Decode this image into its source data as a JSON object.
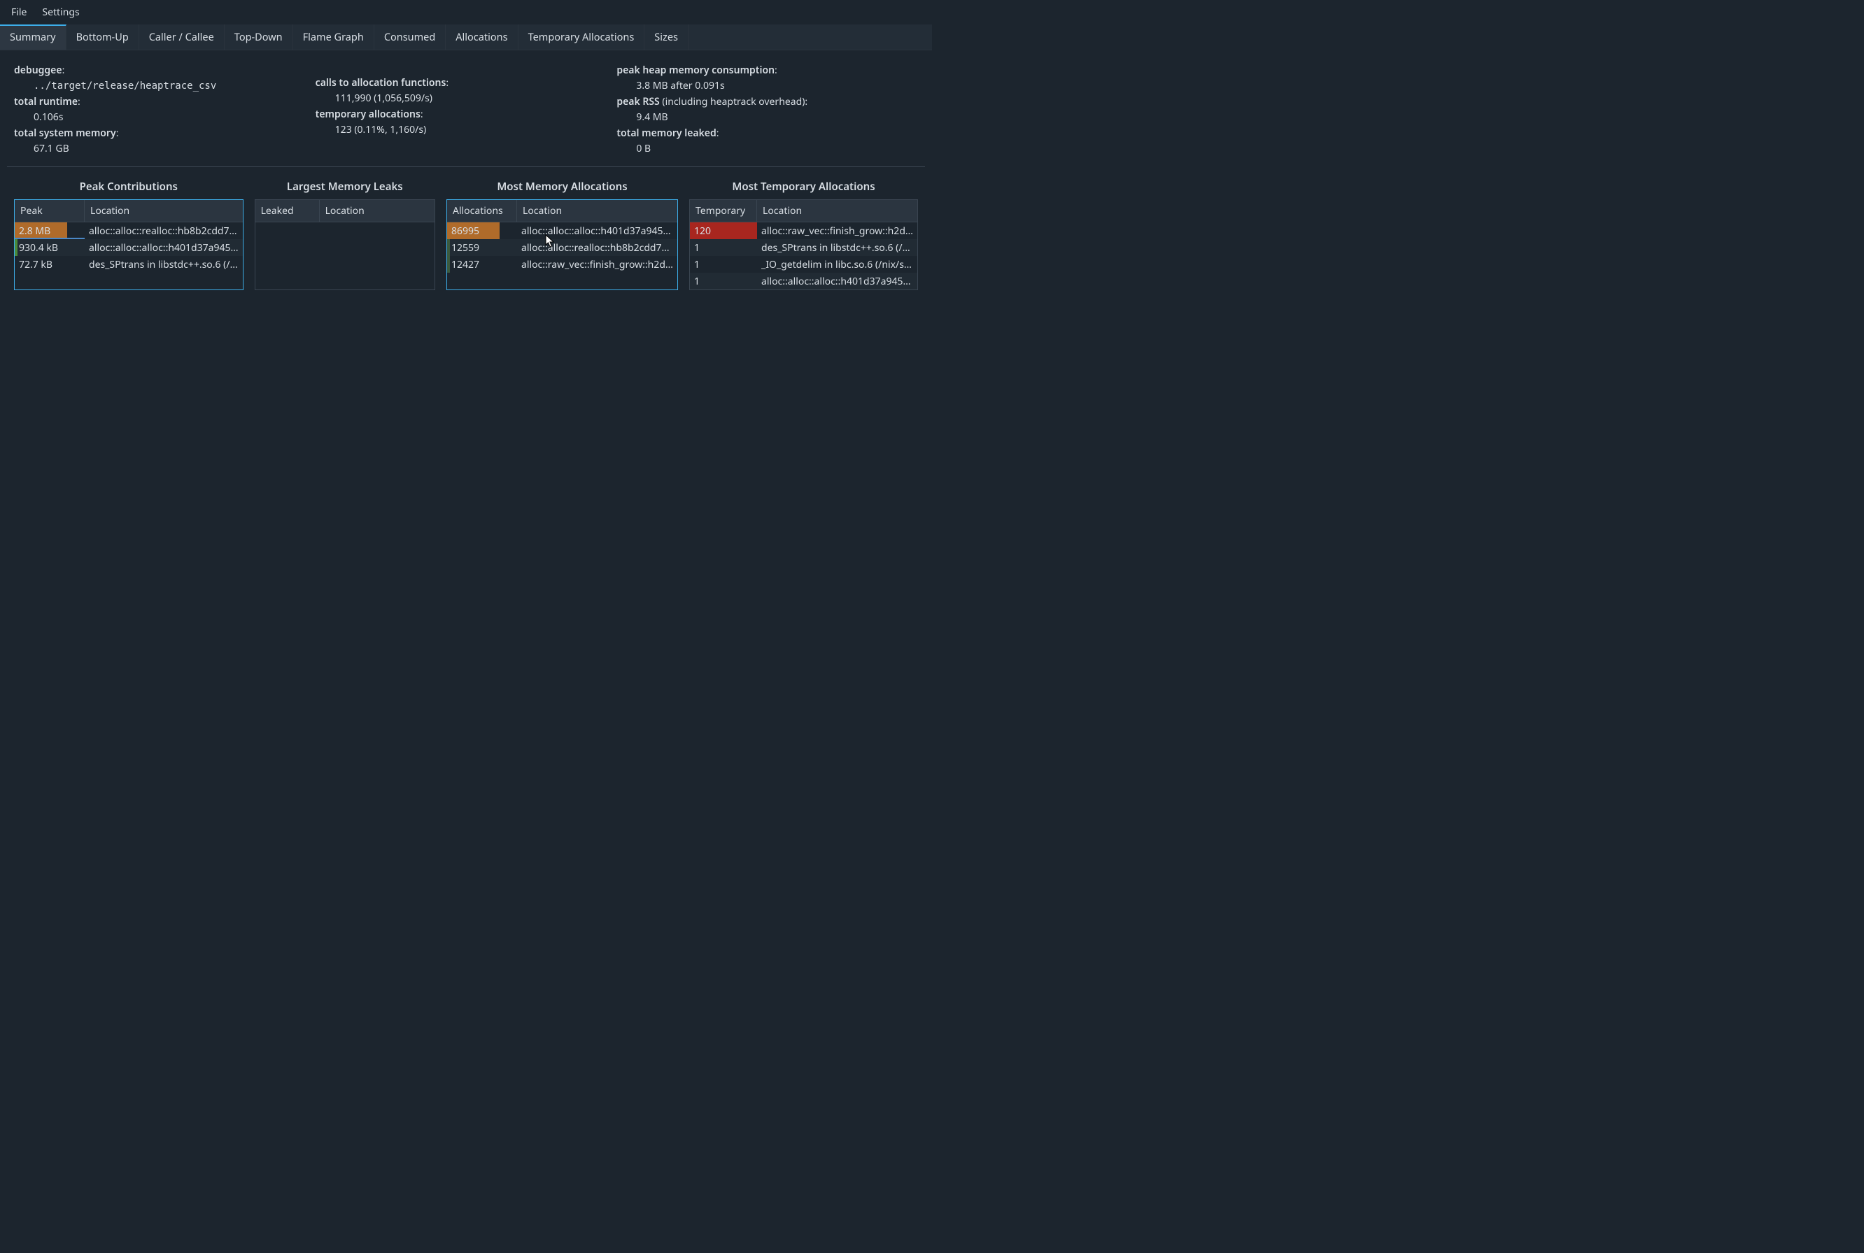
{
  "menu": {
    "file": "File",
    "settings": "Settings"
  },
  "tabs": [
    {
      "label": "Summary",
      "active": true
    },
    {
      "label": "Bottom-Up",
      "active": false
    },
    {
      "label": "Caller / Callee",
      "active": false
    },
    {
      "label": "Top-Down",
      "active": false
    },
    {
      "label": "Flame Graph",
      "active": false
    },
    {
      "label": "Consumed",
      "active": false
    },
    {
      "label": "Allocations",
      "active": false
    },
    {
      "label": "Temporary Allocations",
      "active": false
    },
    {
      "label": "Sizes",
      "active": false
    }
  ],
  "stats": {
    "col1": {
      "debuggee_label": "debuggee",
      "debuggee_value": "../target/release/heaptrace_csv",
      "runtime_label": "total runtime",
      "runtime_value": "0.106s",
      "sysmem_label": "total system memory",
      "sysmem_value": "67.1 GB"
    },
    "col2": {
      "calls_label": "calls to allocation functions",
      "calls_value": "111,990 (1,056,509/s)",
      "temp_label": "temporary allocations",
      "temp_value": "123 (0.11%, 1,160/s)"
    },
    "col3": {
      "peakheap_label": "peak heap memory consumption",
      "peakheap_value": "3.8 MB after 0.091s",
      "peakrss_label": "peak RSS",
      "peakrss_suffix": " (including heaptrack overhead):",
      "peakrss_value": "9.4 MB",
      "leaked_label": "total memory leaked",
      "leaked_value": "0 B"
    }
  },
  "panes": {
    "peak": {
      "title": "Peak Contributions",
      "col1": "Peak",
      "col2": "Location",
      "highlight": true,
      "rows": [
        {
          "value": "2.8 MB",
          "bar_pct": 75,
          "bar_color": "#b06b2a",
          "underline_color": "#4a88c7",
          "underline_pct": 100,
          "location": "alloc::alloc::realloc::hb8b2cdd7…"
        },
        {
          "value": "930.4 kB",
          "bar_pct": 4,
          "bar_color": "#4a8a3a",
          "location": "alloc::alloc::alloc::h401d37a945…"
        },
        {
          "value": "72.7 kB",
          "bar_pct": 0,
          "bar_color": "#000000",
          "location": "des_SPtrans in libstdc++.so.6 (/…"
        }
      ]
    },
    "leaks": {
      "title": "Largest Memory Leaks",
      "col1": "Leaked",
      "col2": "Location",
      "highlight": false,
      "rows": []
    },
    "allocs": {
      "title": "Most Memory Allocations",
      "col1": "Allocations",
      "col2": "Location",
      "highlight": true,
      "rows": [
        {
          "value": "86995",
          "bar_pct": 75,
          "bar_color": "#b06b2a",
          "location": "alloc::alloc::alloc::h401d37a945…"
        },
        {
          "value": "12559",
          "bar_pct": 4,
          "bar_color": "#3b5a3f",
          "location": "alloc::alloc::realloc::hb8b2cdd7…"
        },
        {
          "value": "12427",
          "bar_pct": 4,
          "bar_color": "#3b5a3f",
          "location": "alloc::raw_vec::finish_grow::h2d…"
        }
      ]
    },
    "temp": {
      "title": "Most Temporary Allocations",
      "col1": "Temporary",
      "col2": "Location",
      "highlight": false,
      "rows": [
        {
          "value": "120",
          "bar_pct": 100,
          "bar_color": "#a8261f",
          "location": "alloc::raw_vec::finish_grow::h2d…"
        },
        {
          "value": "1",
          "bar_pct": 0,
          "bar_color": "#000000",
          "location": "des_SPtrans in libstdc++.so.6 (/…"
        },
        {
          "value": "1",
          "bar_pct": 0,
          "bar_color": "#000000",
          "location": "_IO_getdelim in libc.so.6 (/nix/s…"
        },
        {
          "value": "1",
          "bar_pct": 0,
          "bar_color": "#000000",
          "location": "alloc::alloc::alloc::h401d37a945…"
        }
      ]
    }
  },
  "colors": {
    "bg": "#1c252e",
    "panel_border": "#3a4551",
    "accent": "#3daee9",
    "header_bg": "#2b3540"
  }
}
